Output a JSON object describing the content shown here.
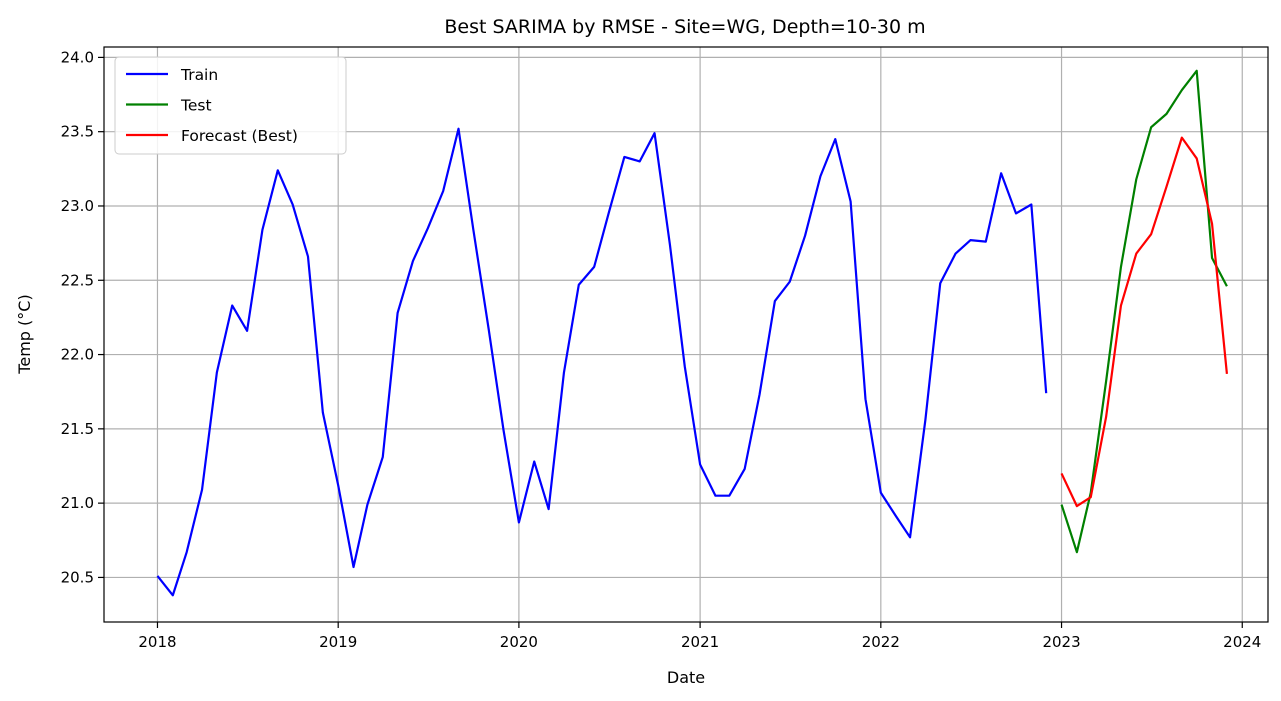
{
  "chart_data": {
    "type": "line",
    "title": "Best SARIMA by RMSE - Site=WG, Depth=10-30 m",
    "xlabel": "Date",
    "ylabel": "Temp (°C)",
    "xlim": [
      "2017-09-15",
      "2024-02-22"
    ],
    "ylim": [
      20.2,
      24.07
    ],
    "grid": true,
    "legend": "top-left",
    "x_ticks": [
      "2018",
      "2019",
      "2020",
      "2021",
      "2022",
      "2023",
      "2024"
    ],
    "y_ticks": [
      "20.5",
      "21.0",
      "21.5",
      "22.0",
      "22.5",
      "23.0",
      "23.5",
      "24.0"
    ],
    "series": [
      {
        "name": "Train",
        "color": "#0000ff",
        "x": [
          "2018-01",
          "2018-02",
          "2018-03",
          "2018-04",
          "2018-05",
          "2018-06",
          "2018-07",
          "2018-08",
          "2018-09",
          "2018-10",
          "2018-11",
          "2018-12",
          "2019-01",
          "2019-02",
          "2019-03",
          "2019-04",
          "2019-05",
          "2019-06",
          "2019-07",
          "2019-08",
          "2019-09",
          "2019-10",
          "2019-11",
          "2019-12",
          "2020-01",
          "2020-02",
          "2020-03",
          "2020-04",
          "2020-05",
          "2020-06",
          "2020-07",
          "2020-08",
          "2020-09",
          "2020-10",
          "2020-11",
          "2020-12",
          "2021-01",
          "2021-02",
          "2021-03",
          "2021-04",
          "2021-05",
          "2021-06",
          "2021-07",
          "2021-08",
          "2021-09",
          "2021-10",
          "2021-11",
          "2021-12",
          "2022-01",
          "2022-02",
          "2022-03",
          "2022-04",
          "2022-05",
          "2022-06",
          "2022-07",
          "2022-08",
          "2022-09",
          "2022-10",
          "2022-11",
          "2022-12"
        ],
        "values": [
          20.51,
          20.38,
          20.67,
          21.09,
          21.88,
          22.33,
          22.16,
          22.84,
          23.24,
          23.01,
          22.66,
          21.61,
          21.12,
          20.57,
          20.99,
          21.31,
          22.28,
          22.63,
          22.85,
          23.1,
          23.52,
          22.84,
          22.17,
          21.49,
          20.87,
          21.28,
          20.96,
          21.88,
          22.47,
          22.59,
          22.96,
          23.33,
          23.3,
          23.49,
          22.74,
          21.92,
          21.26,
          21.05,
          21.05,
          21.23,
          21.73,
          22.36,
          22.49,
          22.8,
          23.2,
          23.45,
          23.03,
          21.7,
          21.07,
          20.91,
          20.77,
          21.56,
          22.48,
          22.68,
          22.77,
          22.76,
          23.22,
          22.95,
          23.01,
          21.74
        ]
      },
      {
        "name": "Test",
        "color": "#008000",
        "x": [
          "2023-01",
          "2023-02",
          "2023-03",
          "2023-04",
          "2023-05",
          "2023-06",
          "2023-07",
          "2023-08",
          "2023-09",
          "2023-10",
          "2023-11",
          "2023-12"
        ],
        "values": [
          20.99,
          20.67,
          21.07,
          21.82,
          22.59,
          23.18,
          23.53,
          23.62,
          23.78,
          23.91,
          22.65,
          22.46
        ]
      },
      {
        "name": "Forecast (Best)",
        "color": "#ff0000",
        "x": [
          "2023-01",
          "2023-02",
          "2023-03",
          "2023-04",
          "2023-05",
          "2023-06",
          "2023-07",
          "2023-08",
          "2023-09",
          "2023-10",
          "2023-11",
          "2023-12"
        ],
        "values": [
          21.2,
          20.98,
          21.04,
          21.58,
          22.33,
          22.68,
          22.81,
          23.13,
          23.46,
          23.32,
          22.88,
          21.87
        ]
      }
    ]
  }
}
